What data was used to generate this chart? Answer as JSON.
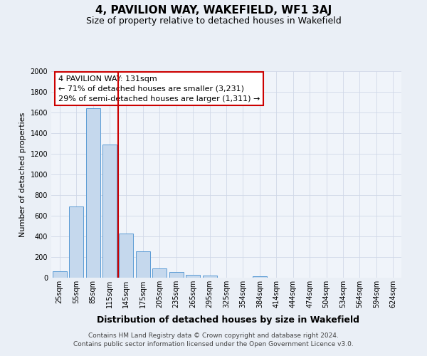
{
  "title": "4, PAVILION WAY, WAKEFIELD, WF1 3AJ",
  "subtitle": "Size of property relative to detached houses in Wakefield",
  "xlabel": "Distribution of detached houses by size in Wakefield",
  "ylabel": "Number of detached properties",
  "bar_categories": [
    "25sqm",
    "55sqm",
    "85sqm",
    "115sqm",
    "145sqm",
    "175sqm",
    "205sqm",
    "235sqm",
    "265sqm",
    "295sqm",
    "325sqm",
    "354sqm",
    "384sqm",
    "414sqm",
    "444sqm",
    "474sqm",
    "504sqm",
    "534sqm",
    "564sqm",
    "594sqm",
    "624sqm"
  ],
  "bar_values": [
    65,
    690,
    1640,
    1290,
    430,
    255,
    90,
    52,
    30,
    20,
    0,
    0,
    15,
    0,
    0,
    0,
    0,
    0,
    0,
    0,
    0
  ],
  "bar_color": "#c5d8ed",
  "bar_edge_color": "#5b9bd5",
  "vline_color": "#cc0000",
  "annotation_line1": "4 PAVILION WAY: 131sqm",
  "annotation_line2": "← 71% of detached houses are smaller (3,231)",
  "annotation_line3": "29% of semi-detached houses are larger (1,311) →",
  "annotation_box_color": "#ffffff",
  "annotation_box_edge": "#cc0000",
  "ylim": [
    0,
    2000
  ],
  "yticks": [
    0,
    200,
    400,
    600,
    800,
    1000,
    1200,
    1400,
    1600,
    1800,
    2000
  ],
  "footer_line1": "Contains HM Land Registry data © Crown copyright and database right 2024.",
  "footer_line2": "Contains public sector information licensed under the Open Government Licence v3.0.",
  "bg_color": "#eaeff6",
  "plot_bg_color": "#f0f4fa",
  "grid_color": "#d0d8e8",
  "title_fontsize": 11,
  "subtitle_fontsize": 9,
  "xlabel_fontsize": 9,
  "ylabel_fontsize": 8,
  "tick_fontsize": 7,
  "footer_fontsize": 6.5,
  "annotation_fontsize": 8
}
